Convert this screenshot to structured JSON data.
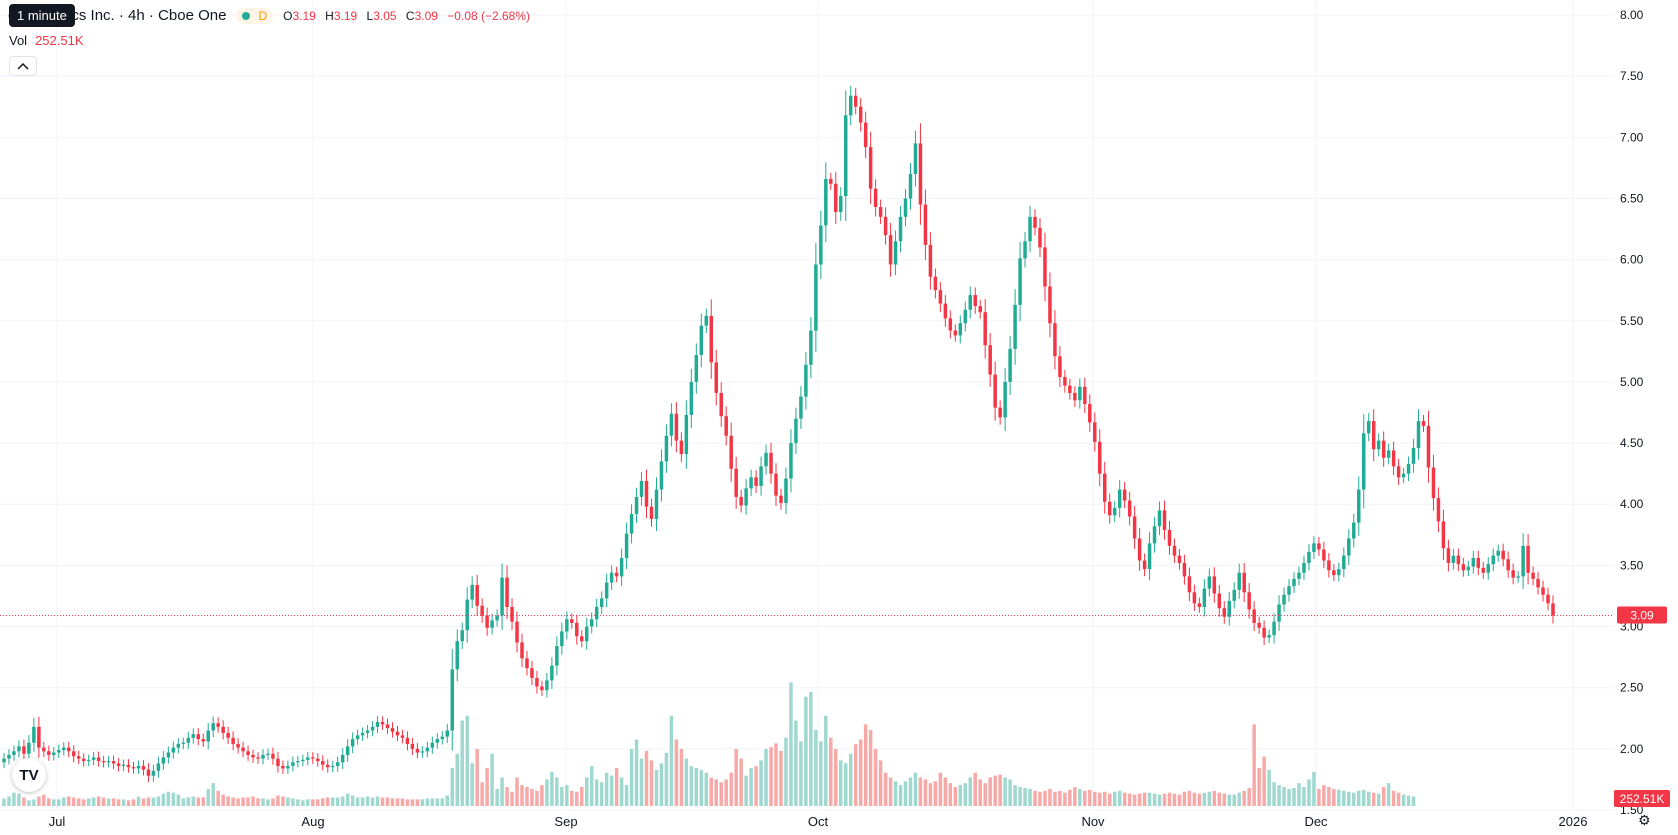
{
  "header": {
    "title": "ch Robotics Inc. · 4h · Cboe One",
    "interval_badge": "D",
    "open_label": "O",
    "open_value": "3.19",
    "high_label": "H",
    "high_value": "3.19",
    "low_label": "L",
    "low_value": "3.05",
    "close_label": "C",
    "close_value": "3.09",
    "change": "−0.08 (−2.68%)"
  },
  "tooltip": "1 minute",
  "volume": {
    "label": "Vol",
    "value": "252.51K"
  },
  "price_tag": "3.09",
  "volume_tag": "252.51K",
  "colors": {
    "up": "#22ab94",
    "down": "#f23645",
    "up_vol": "#9fd8cf",
    "down_vol": "#f7a9a7",
    "grid": "#f0f3fa",
    "axis_text": "#131722"
  },
  "chart_data": {
    "type": "candlestick",
    "y_ticks": [
      "8.00",
      "7.50",
      "7.00",
      "6.50",
      "6.00",
      "5.50",
      "5.00",
      "4.50",
      "4.00",
      "3.50",
      "3.00",
      "2.50",
      "2.00",
      "1.50"
    ],
    "x_ticks": [
      "Jul",
      "Aug",
      "Sep",
      "Oct",
      "Nov",
      "Dec",
      "2026"
    ],
    "ylim": [
      1.2,
      8.1
    ],
    "last_price": 3.09,
    "closes": [
      1.92,
      1.95,
      1.98,
      2.02,
      1.96,
      2.05,
      2.18,
      2.01,
      1.98,
      1.95,
      1.97,
      1.99,
      2.01,
      1.98,
      1.94,
      1.92,
      1.9,
      1.91,
      1.93,
      1.9,
      1.89,
      1.9,
      1.88,
      1.86,
      1.87,
      1.85,
      1.84,
      1.86,
      1.83,
      1.78,
      1.82,
      1.88,
      1.93,
      1.97,
      2.01,
      2.04,
      2.05,
      2.09,
      2.12,
      2.08,
      2.06,
      2.15,
      2.21,
      2.18,
      2.13,
      2.09,
      2.04,
      2.01,
      1.98,
      1.95,
      1.93,
      1.92,
      1.95,
      1.96,
      1.92,
      1.86,
      1.84,
      1.86,
      1.89,
      1.9,
      1.91,
      1.93,
      1.92,
      1.9,
      1.87,
      1.85,
      1.86,
      1.89,
      1.95,
      2.02,
      2.08,
      2.11,
      2.13,
      2.15,
      2.18,
      2.22,
      2.2,
      2.17,
      2.14,
      2.11,
      2.09,
      2.04,
      2.0,
      1.97,
      1.98,
      2.01,
      2.05,
      2.08,
      2.1,
      2.15,
      2.65,
      2.88,
      2.97,
      3.22,
      3.34,
      3.17,
      3.09,
      2.99,
      3.05,
      3.09,
      3.4,
      3.16,
      3.04,
      2.87,
      2.74,
      2.66,
      2.58,
      2.51,
      2.48,
      2.56,
      2.68,
      2.84,
      2.96,
      3.06,
      3.03,
      2.92,
      2.88,
      3.0,
      3.06,
      3.16,
      3.23,
      3.36,
      3.44,
      3.41,
      3.56,
      3.76,
      3.92,
      4.06,
      4.19,
      3.98,
      3.88,
      4.12,
      4.35,
      4.56,
      4.74,
      4.52,
      4.41,
      4.73,
      5.0,
      5.22,
      5.46,
      5.54,
      5.16,
      4.91,
      4.72,
      4.56,
      4.29,
      4.06,
      3.99,
      4.13,
      4.22,
      4.15,
      4.31,
      4.42,
      4.25,
      4.07,
      4.01,
      4.21,
      4.5,
      4.7,
      4.88,
      5.14,
      5.42,
      5.96,
      6.28,
      6.66,
      6.62,
      6.39,
      6.52,
      7.18,
      7.34,
      7.25,
      7.12,
      6.92,
      6.58,
      6.43,
      6.35,
      6.2,
      5.96,
      6.15,
      6.35,
      6.5,
      6.7,
      6.95,
      6.45,
      6.12,
      5.86,
      5.75,
      5.64,
      5.52,
      5.42,
      5.38,
      5.48,
      5.59,
      5.71,
      5.62,
      5.57,
      5.3,
      5.06,
      4.79,
      4.71,
      5.0,
      5.27,
      5.63,
      6.01,
      6.15,
      6.35,
      6.26,
      6.1,
      5.78,
      5.48,
      5.21,
      5.04,
      4.97,
      4.91,
      4.85,
      4.96,
      4.82,
      4.67,
      4.51,
      4.25,
      4.02,
      3.91,
      3.97,
      4.12,
      4.03,
      3.9,
      3.72,
      3.54,
      3.47,
      3.68,
      3.82,
      3.95,
      3.79,
      3.66,
      3.58,
      3.52,
      3.41,
      3.28,
      3.19,
      3.16,
      3.31,
      3.41,
      3.27,
      3.15,
      3.08,
      3.21,
      3.3,
      3.44,
      3.28,
      3.14,
      3.03,
      2.99,
      2.91,
      2.93,
      3.04,
      3.18,
      3.26,
      3.33,
      3.39,
      3.44,
      3.52,
      3.61,
      3.68,
      3.63,
      3.54,
      3.46,
      3.42,
      3.47,
      3.58,
      3.72,
      3.85,
      4.12,
      4.58,
      4.68,
      4.45,
      4.52,
      4.38,
      4.44,
      4.31,
      4.22,
      4.25,
      4.33,
      4.46,
      4.68,
      4.64,
      4.3,
      4.05,
      3.86,
      3.64,
      3.52,
      3.58,
      3.51,
      3.46,
      3.49,
      3.56,
      3.48,
      3.44,
      3.51,
      3.58,
      3.62,
      3.55,
      3.46,
      3.4,
      3.41,
      3.66,
      3.44,
      3.39,
      3.32,
      3.26,
      3.19,
      3.09
    ],
    "volumes": [
      8,
      10,
      14,
      13,
      9,
      6,
      7,
      10,
      12,
      8,
      7,
      7,
      9,
      10,
      9,
      8,
      7,
      8,
      9,
      10,
      9,
      8,
      8,
      7,
      7,
      6,
      7,
      10,
      8,
      9,
      9,
      10,
      13,
      15,
      14,
      12,
      8,
      9,
      10,
      9,
      9,
      18,
      24,
      16,
      12,
      10,
      9,
      8,
      9,
      9,
      10,
      8,
      8,
      7,
      8,
      11,
      10,
      9,
      8,
      7,
      6,
      7,
      7,
      7,
      8,
      9,
      9,
      9,
      10,
      13,
      11,
      9,
      9,
      10,
      9,
      10,
      9,
      9,
      8,
      8,
      8,
      7,
      7,
      7,
      7,
      8,
      8,
      8,
      8,
      11,
      40,
      55,
      90,
      95,
      45,
      60,
      25,
      40,
      55,
      18,
      30,
      20,
      15,
      30,
      22,
      20,
      18,
      16,
      22,
      28,
      36,
      30,
      20,
      22,
      16,
      15,
      20,
      30,
      42,
      28,
      25,
      35,
      32,
      40,
      30,
      22,
      60,
      70,
      50,
      58,
      48,
      38,
      45,
      56,
      95,
      70,
      60,
      50,
      42,
      40,
      38,
      35,
      30,
      28,
      25,
      28,
      35,
      60,
      50,
      32,
      40,
      42,
      48,
      60,
      62,
      66,
      58,
      72,
      130,
      90,
      68,
      115,
      120,
      80,
      68,
      95,
      72,
      60,
      48,
      45,
      55,
      65,
      70,
      86,
      80,
      60,
      48,
      35,
      30,
      26,
      22,
      26,
      30,
      35,
      30,
      28,
      24,
      26,
      35,
      30,
      24,
      20,
      22,
      24,
      30,
      35,
      28,
      24,
      30,
      32,
      33,
      30,
      28,
      22,
      20,
      19,
      18,
      16,
      15,
      16,
      18,
      15,
      16,
      14,
      17,
      20,
      18,
      16,
      17,
      15,
      14,
      15,
      13,
      15,
      16,
      14,
      13,
      12,
      13,
      14,
      14,
      13,
      12,
      13,
      14,
      13,
      12,
      15,
      16,
      14,
      13,
      14,
      15,
      16,
      14,
      13,
      12,
      12,
      14,
      16,
      19,
      86,
      40,
      52,
      38,
      25,
      22,
      20,
      18,
      19,
      24,
      20,
      28,
      36,
      18,
      22,
      20,
      18,
      17,
      16,
      15,
      14,
      16,
      17,
      15,
      14,
      13,
      20,
      24,
      16,
      14,
      12,
      11,
      10
    ]
  }
}
